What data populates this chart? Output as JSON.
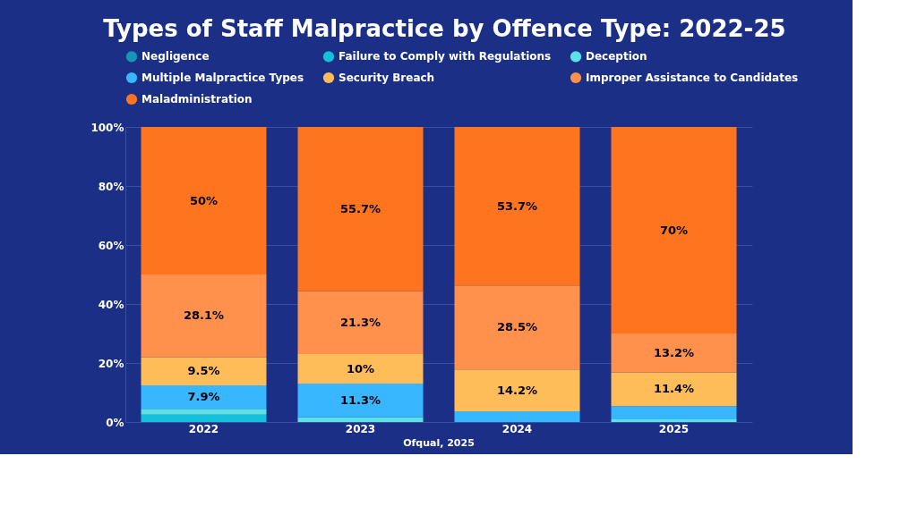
{
  "chart_data": {
    "type": "bar",
    "stacked": true,
    "title": "Types of Staff Malpractice by Offence Type: 2022-25",
    "categories": [
      "2022",
      "2023",
      "2024",
      "2025"
    ],
    "series": [
      {
        "name": "Negligence",
        "color": "#1596b5",
        "values": [
          0,
          0,
          0,
          0
        ],
        "value_labels": [
          null,
          null,
          null,
          null
        ]
      },
      {
        "name": "Failure to Comply with Regulations",
        "color": "#14c0dc",
        "values": [
          2.5,
          0,
          0,
          0
        ],
        "value_labels": [
          null,
          null,
          null,
          null
        ]
      },
      {
        "name": "Deception",
        "color": "#5ce1e6",
        "values": [
          2,
          1.7,
          0,
          0.9
        ],
        "value_labels": [
          null,
          null,
          null,
          null
        ]
      },
      {
        "name": "Multiple Malpractice Types",
        "color": "#38b6ff",
        "values": [
          7.9,
          11.3,
          3.6,
          4.5
        ],
        "value_labels": [
          "7.9%",
          "11.3%",
          null,
          null
        ]
      },
      {
        "name": "Security Breach",
        "color": "#ffbd59",
        "values": [
          9.5,
          10,
          14.2,
          11.4
        ],
        "value_labels": [
          "9.5%",
          "10%",
          "14.2%",
          "11.4%"
        ]
      },
      {
        "name": "Improper Assistance to Candidates",
        "color": "#ff914d",
        "values": [
          28.1,
          21.3,
          28.5,
          13.2
        ],
        "value_labels": [
          "28.1%",
          "21.3%",
          "28.5%",
          "13.2%"
        ]
      },
      {
        "name": "Maladministration",
        "color": "#ff751f",
        "values": [
          50,
          55.7,
          53.7,
          70
        ],
        "value_labels": [
          "50%",
          "55.7%",
          "53.7%",
          "70%"
        ]
      }
    ],
    "ylim": [
      0,
      100
    ],
    "yticks": [
      {
        "value": 0,
        "label": "0%"
      },
      {
        "value": 20,
        "label": "20%"
      },
      {
        "value": 40,
        "label": "40%"
      },
      {
        "value": 60,
        "label": "60%"
      },
      {
        "value": 80,
        "label": "80%"
      },
      {
        "value": 100,
        "label": "100%"
      }
    ],
    "grid": "y",
    "legend": "top",
    "annotations": [
      "Ofqual, 2025"
    ]
  }
}
